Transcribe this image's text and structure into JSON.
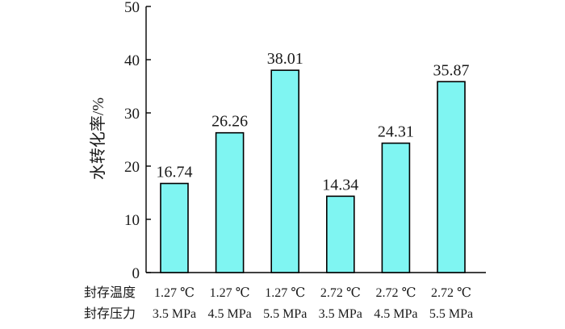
{
  "chart_data": {
    "type": "bar",
    "title": "",
    "ylabel": "水转化率/%",
    "xlabel": "",
    "ylim": [
      0,
      50
    ],
    "yticks": [
      0,
      10,
      20,
      30,
      40,
      50
    ],
    "grid": false,
    "bar_color": "#7ff5f2",
    "row_labels": [
      "封存温度",
      "封存压力"
    ],
    "categories": [
      {
        "temperature": "1.27 ℃",
        "pressure": "3.5 MPa"
      },
      {
        "temperature": "1.27 ℃",
        "pressure": "4.5 MPa"
      },
      {
        "temperature": "1.27 ℃",
        "pressure": "5.5 MPa"
      },
      {
        "temperature": "2.72 ℃",
        "pressure": "3.5 MPa"
      },
      {
        "temperature": "2.72 ℃",
        "pressure": "4.5 MPa"
      },
      {
        "temperature": "2.72 ℃",
        "pressure": "5.5 MPa"
      }
    ],
    "values": [
      16.74,
      26.26,
      38.01,
      14.34,
      24.31,
      35.87
    ],
    "data_labels": [
      "16.74",
      "26.26",
      "38.01",
      "14.34",
      "24.31",
      "35.87"
    ]
  }
}
